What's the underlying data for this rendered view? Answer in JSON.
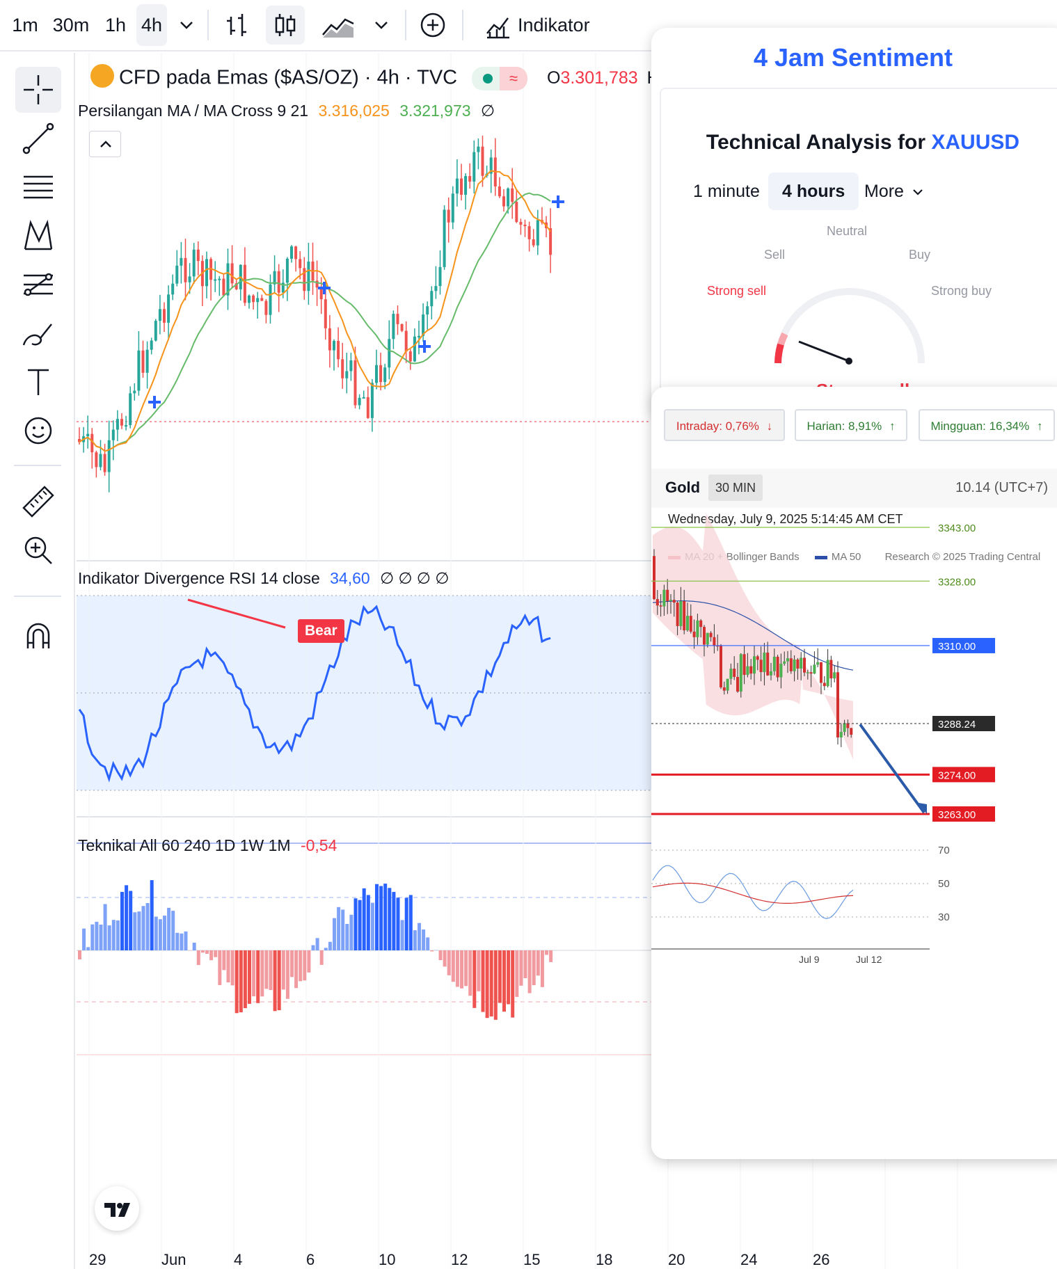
{
  "toolbar": {
    "timeframes": [
      "1m",
      "30m",
      "1h",
      "4h"
    ],
    "active_timeframe": "4h",
    "indicators_label": "Indikator"
  },
  "chart": {
    "symbol_title": "CFD pada Emas ($AS/OZ) · 4h · TVC",
    "open_label": "O",
    "open_value": "3.301,783",
    "open_more": "H",
    "ma_cross_label": "Persilangan MA / MA Cross 9 21",
    "ma_fast_value": "3.316,025",
    "ma_slow_value": "3.321,973",
    "ma_extra": "∅",
    "rsi_label": "Indikator Divergence RSI 14 close",
    "rsi_value": "34,60",
    "rsi_extra": "∅ ∅ ∅ ∅",
    "bear_label": "Bear",
    "tech_label": "Teknikal All 60 240 1D 1W 1M",
    "tech_value": "-0,54",
    "date_labels": [
      "29",
      "Jun",
      "4",
      "6",
      "10",
      "12",
      "15",
      "18",
      "20",
      "24",
      "26"
    ],
    "colors": {
      "up": "#26a69a",
      "down": "#ef5350",
      "ma_fast": "#f7931a",
      "ma_slow": "#66bb6a",
      "rsi": "#2962ff",
      "bear": "#f23645"
    }
  },
  "sentiment": {
    "title": "4 Jam Sentiment",
    "heading_prefix": "Technical Analysis for",
    "symbol": "XAUUSD",
    "tabs": [
      "1 minute",
      "4 hours",
      "More"
    ],
    "active_tab": "4 hours",
    "gauge_labels": {
      "neutral": "Neutral",
      "sell": "Sell",
      "buy": "Buy",
      "strong_sell": "Strong sell",
      "strong_buy": "Strong buy"
    },
    "verdict": "Strong sell"
  },
  "gold": {
    "performance": [
      {
        "label": "Intraday: 0,76%",
        "direction": "down"
      },
      {
        "label": "Harian: 8,91%",
        "direction": "up"
      },
      {
        "label": "Mingguan: 16,34%",
        "direction": "up"
      }
    ],
    "name": "Gold",
    "timeframe": "30 MIN",
    "timezone": "10.14 (UTC+7)",
    "datetime": "Wednesday, July 9, 2025 5:14:45 AM CET",
    "legend_ma20": "MA 20 + Bollinger Bands",
    "legend_ma50": "MA 50",
    "copyright": "Research © 2025 Trading Central",
    "levels": [
      "3343.00",
      "3328.00",
      "3310.00",
      "3288.24",
      "3274.00",
      "3263.00"
    ],
    "rsi_levels": [
      "70",
      "50",
      "30"
    ],
    "x_labels": [
      "Jul 9",
      "Jul 12"
    ]
  }
}
